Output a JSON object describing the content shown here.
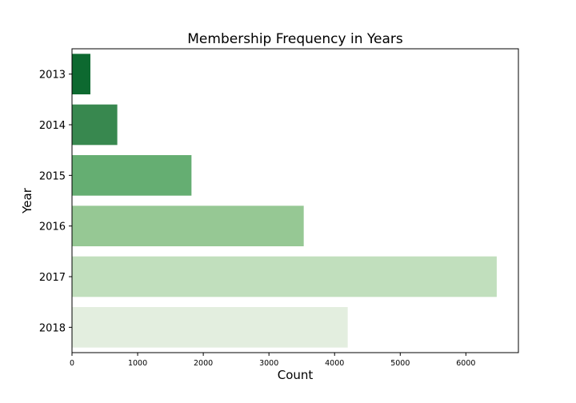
{
  "chart_data": {
    "type": "bar",
    "orientation": "horizontal",
    "title": "Membership Frequency in Years",
    "xlabel": "Count",
    "ylabel": "Year",
    "categories": [
      "2013",
      "2014",
      "2015",
      "2016",
      "2017",
      "2018"
    ],
    "values": [
      280,
      690,
      1820,
      3530,
      6470,
      4200
    ],
    "xlim": [
      0,
      6800
    ],
    "xticks": [
      0,
      1000,
      2000,
      3000,
      4000,
      5000,
      6000
    ],
    "grid": false,
    "legend": "none",
    "colors": [
      "#0d6930",
      "#38884f",
      "#65ae72",
      "#96c894",
      "#c1dfbd",
      "#e3eedf"
    ]
  }
}
